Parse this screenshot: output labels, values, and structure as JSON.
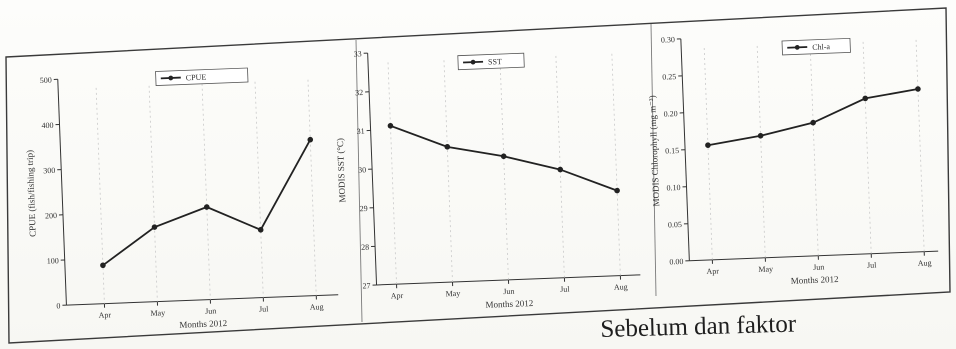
{
  "caption_fragment": "Sebelum dan faktor",
  "chart_data": [
    {
      "type": "line",
      "categories": [
        "Apr",
        "May",
        "Jun",
        "Jul",
        "Aug"
      ],
      "series": [
        {
          "name": "CPUE",
          "values": [
            85,
            165,
            205,
            150,
            345
          ]
        }
      ],
      "ylim": [
        0,
        500
      ],
      "yticks": [
        "0",
        "100",
        "200",
        "300",
        "400",
        "500"
      ],
      "xlabel": "Months 2012",
      "ylabel": "CPUE (fish/fishing trip)",
      "legend": "top-left"
    },
    {
      "type": "line",
      "categories": [
        "Apr",
        "May",
        "Jun",
        "Jul",
        "Aug"
      ],
      "series": [
        {
          "name": "SST",
          "values": [
            31.1,
            30.5,
            30.2,
            29.8,
            29.2
          ]
        }
      ],
      "ylim": [
        27,
        33
      ],
      "yticks": [
        "27",
        "28",
        "29",
        "30",
        "31",
        "32",
        "33"
      ],
      "xlabel": "Months 2012",
      "ylabel": "MODIS SST (°C)",
      "legend": "top-right"
    },
    {
      "type": "line",
      "categories": [
        "Apr",
        "May",
        "Jun",
        "Jul",
        "Aug"
      ],
      "series": [
        {
          "name": "Chl-a",
          "values": [
            0.155,
            0.165,
            0.18,
            0.21,
            0.22
          ]
        }
      ],
      "ylim": [
        0.0,
        0.3
      ],
      "yticks": [
        "0.00",
        "0.05",
        "0.10",
        "0.15",
        "0.20",
        "0.25",
        "0.30"
      ],
      "xlabel": "Months 2012",
      "ylabel": "MODIS Chlorophyll (mg m⁻³)",
      "legend": "top-right"
    }
  ]
}
